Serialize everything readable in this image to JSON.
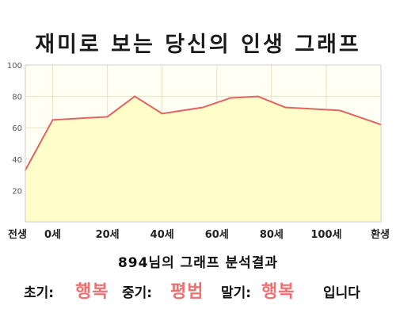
{
  "title": "재미로 보는 당신의 인생 그래프",
  "analysis": {
    "number": "894",
    "text": "님의 그래프 분석결과"
  },
  "phases": {
    "early_label": "초기:",
    "early_value": "행복",
    "middle_label": "중기:",
    "middle_value": "평범",
    "late_label": "말기:",
    "late_value": "행복",
    "suffix": "입니다"
  },
  "colors": {
    "fill": "#fffec8",
    "line": "#e06464",
    "highlight": "#f07070",
    "grid": "#e4e4c0"
  },
  "chart_data": {
    "type": "area",
    "x": [
      -10,
      0,
      20,
      30,
      40,
      55,
      65,
      75,
      85,
      105,
      120
    ],
    "values": [
      33,
      65,
      67,
      80,
      69,
      73,
      79,
      80,
      73,
      71,
      62
    ],
    "xlim": [
      -10,
      120
    ],
    "ylim": [
      0,
      100
    ],
    "yticks": [
      20,
      40,
      60,
      80,
      100
    ],
    "xticks": [
      {
        "x": -10,
        "label": "전생"
      },
      {
        "x": 0,
        "label": "0세"
      },
      {
        "x": 20,
        "label": "20세"
      },
      {
        "x": 40,
        "label": "40세"
      },
      {
        "x": 60,
        "label": "60세"
      },
      {
        "x": 80,
        "label": "80세"
      },
      {
        "x": 100,
        "label": "100세"
      },
      {
        "x": 120,
        "label": "환생"
      }
    ],
    "grid": true
  }
}
